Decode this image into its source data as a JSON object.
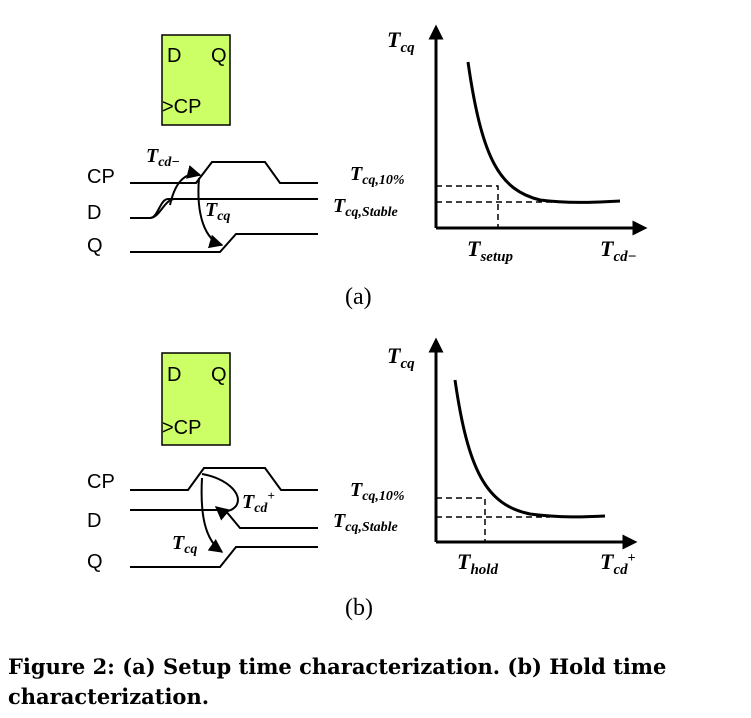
{
  "figure": {
    "panel_a": {
      "label": "(a)",
      "flipflop": {
        "d": "D",
        "q": "Q",
        "clock": ">CP",
        "fill_color": "#ccff66"
      },
      "signals": {
        "cp": "CP",
        "d": "D",
        "q": "Q"
      },
      "timing": {
        "tcd_T": "T",
        "tcd_sub": "cd−",
        "tcq_T": "T",
        "tcq_sub": "cq"
      },
      "plot": {
        "y_T": "T",
        "y_sub": "cq",
        "x_T": "T",
        "x_sub": "cd−",
        "level10_T": "T",
        "level10_sub": "cq,10%",
        "stable_T": "T",
        "stable_sub": "cq,Stable",
        "marker_T": "T",
        "marker_sub": "setup"
      }
    },
    "panel_b": {
      "label": "(b)",
      "flipflop": {
        "d": "D",
        "q": "Q",
        "clock": ">CP",
        "fill_color": "#ccff66"
      },
      "signals": {
        "cp": "CP",
        "d": "D",
        "q": "Q"
      },
      "timing": {
        "tcd_T": "T",
        "tcd_sub": "cd",
        "tcd_sup": "+",
        "tcq_T": "T",
        "tcq_sub": "cq"
      },
      "plot": {
        "y_T": "T",
        "y_sub": "cq",
        "x_T": "T",
        "x_sub": "cd",
        "x_sup": "+",
        "level10_T": "T",
        "level10_sub": "cq,10%",
        "stable_T": "T",
        "stable_sub": "cq,Stable",
        "marker_T": "T",
        "marker_sub": "hold"
      }
    },
    "caption": "Figure 2: (a) Setup time characterization. (b) Hold time characterization."
  }
}
